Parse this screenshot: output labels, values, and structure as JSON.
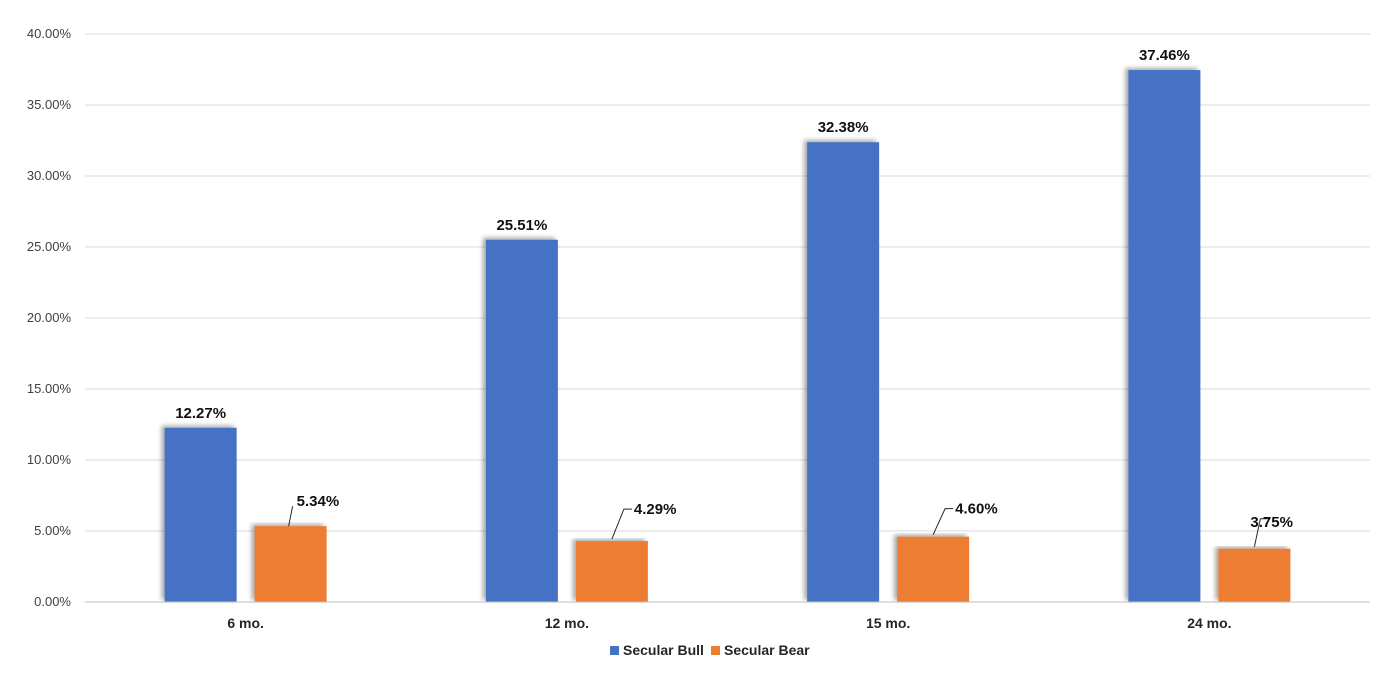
{
  "chart_data": {
    "type": "bar",
    "categories": [
      "6 mo.",
      "12 mo.",
      "15 mo.",
      "24 mo."
    ],
    "series": [
      {
        "name": "Secular Bull",
        "color": "#4472C4",
        "values": [
          12.27,
          25.51,
          32.38,
          37.46
        ],
        "labels": [
          "12.27%",
          "25.51%",
          "32.38%",
          "37.46%"
        ]
      },
      {
        "name": "Secular Bear",
        "color": "#ED7D31",
        "values": [
          5.34,
          4.29,
          4.6,
          3.75
        ],
        "labels": [
          "5.34%",
          "4.29%",
          "4.60%",
          "3.75%"
        ]
      }
    ],
    "ylim": [
      0,
      40
    ],
    "yticks": [
      0,
      5,
      10,
      15,
      20,
      25,
      30,
      35,
      40
    ],
    "ytick_labels": [
      "0.00%",
      "5.00%",
      "10.00%",
      "15.00%",
      "20.00%",
      "25.00%",
      "30.00%",
      "35.00%",
      "40.00%"
    ],
    "title": "",
    "xlabel": "",
    "ylabel": "",
    "grid": true,
    "legend_position": "bottom"
  }
}
